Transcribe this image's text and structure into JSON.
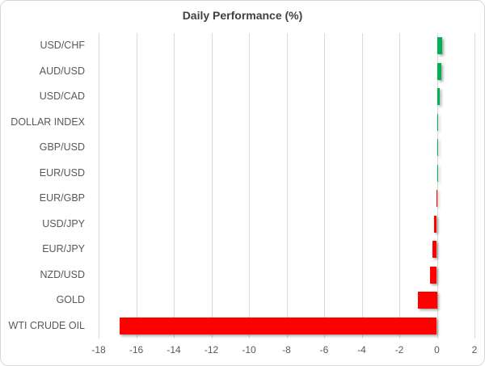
{
  "title": "Daily Performance (%)",
  "chart_data": {
    "type": "bar",
    "orientation": "horizontal",
    "title": "Daily Performance (%)",
    "categories": [
      "USD/CHF",
      "AUD/USD",
      "USD/CAD",
      "DOLLAR INDEX",
      "GBP/USD",
      "EUR/USD",
      "EUR/GBP",
      "USD/JPY",
      "EUR/JPY",
      "NZD/USD",
      "GOLD",
      "WTI CRUDE OIL"
    ],
    "values": [
      0.3,
      0.25,
      0.17,
      0.06,
      0.07,
      0.02,
      -0.01,
      -0.15,
      -0.24,
      -0.38,
      -1.0,
      -16.9
    ],
    "xlim": [
      -18,
      2
    ],
    "x_ticks": [
      -18,
      -16,
      -14,
      -12,
      -10,
      -8,
      -6,
      -4,
      -2,
      0,
      2
    ],
    "xlabel": "",
    "ylabel": "",
    "grid": true,
    "legend": false,
    "colors": {
      "positive": "#00B050",
      "negative": "#FF0000",
      "gridline": "#D9D9D9",
      "title_text": "#404040",
      "axis_text": "#595959"
    }
  }
}
